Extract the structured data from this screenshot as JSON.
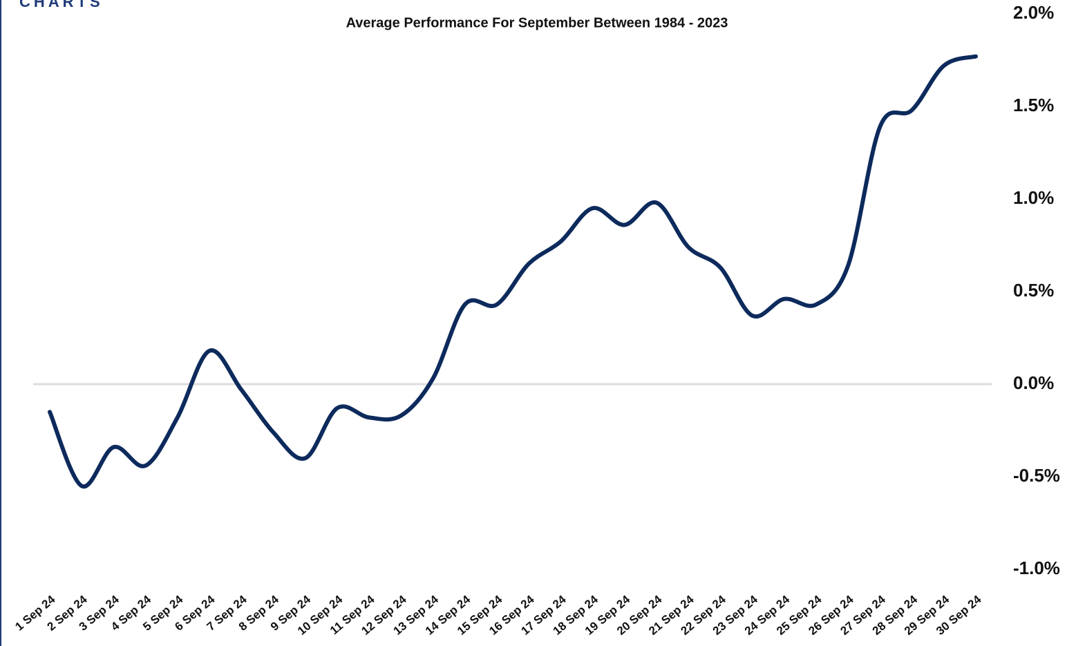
{
  "chart_data": {
    "type": "line",
    "logo": "CHARTS",
    "subtitle": "Average Performance For September Between 1984 - 2023",
    "categories": [
      "1 Sep 24",
      "2 Sep 24",
      "3 Sep 24",
      "4 Sep 24",
      "5 Sep 24",
      "6 Sep 24",
      "7 Sep 24",
      "8 Sep 24",
      "9 Sep 24",
      "10 Sep 24",
      "11 Sep 24",
      "12 Sep 24",
      "13 Sep 24",
      "14 Sep 24",
      "15 Sep 24",
      "16 Sep 24",
      "17 Sep 24",
      "18 Sep 24",
      "19 Sep 24",
      "20 Sep 24",
      "21 Sep 24",
      "22 Sep 24",
      "23 Sep 24",
      "24 Sep 24",
      "25 Sep 24",
      "26 Sep 24",
      "27 Sep 24",
      "28 Sep 24",
      "29 Sep 24",
      "30 Sep 24"
    ],
    "series": [
      {
        "color": "#0d2a5c",
        "values": [
          -0.15,
          -0.55,
          -0.34,
          -0.44,
          -0.18,
          0.18,
          -0.03,
          -0.26,
          -0.4,
          -0.13,
          -0.18,
          -0.17,
          0.03,
          0.43,
          0.43,
          0.65,
          0.77,
          0.95,
          0.86,
          0.98,
          0.74,
          0.63,
          0.37,
          0.46,
          0.43,
          0.64,
          1.39,
          1.48,
          1.72,
          1.77
        ]
      }
    ],
    "ylim": [
      -1.0,
      2.0
    ],
    "yticks": [
      {
        "value": 2.0,
        "label": "2.0%"
      },
      {
        "value": 1.5,
        "label": "1.5%"
      },
      {
        "value": 1.0,
        "label": "1.0%"
      },
      {
        "value": 0.5,
        "label": "0.5%"
      },
      {
        "value": 0.0,
        "label": "0.0%"
      },
      {
        "value": -0.5,
        "label": "-0.5%"
      },
      {
        "value": -1.0,
        "label": "-1.0%"
      }
    ],
    "zero_line": true
  }
}
